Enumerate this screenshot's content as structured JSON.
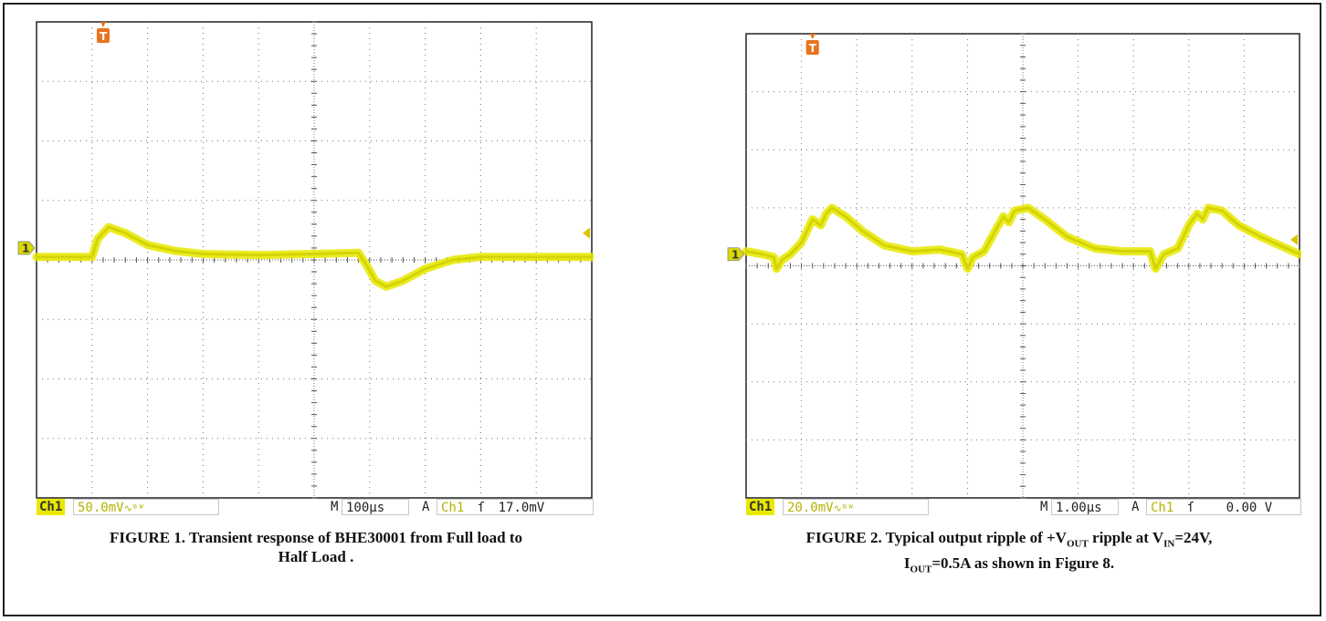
{
  "figures": [
    {
      "caption_line1": "FIGURE 1. Transient response of BHE30001 from Full load  to",
      "caption_line2": "Half Load .",
      "status": {
        "channel": "Ch1",
        "volts_div": "50.0mV",
        "bw_mark": "∿ᴮᵂ",
        "m_label": "M",
        "time_div": "100µs",
        "a_label": "A",
        "trig_channel": "Ch1",
        "trig_slope": "ſ",
        "trig_level": "17.0mV"
      },
      "markers": {
        "trigger": "T",
        "ch1": "1"
      }
    },
    {
      "caption_parts": {
        "p1": "FIGURE 2. Typical output ripple of +V",
        "sub1": "OUT",
        "p2": " ripple at V",
        "sub2": "IN",
        "p3": "=24V,",
        "p4": "I",
        "sub3": "OUT",
        "p5": "=0.5A as shown in Figure 8."
      },
      "status": {
        "channel": "Ch1",
        "volts_div": "20.0mV",
        "bw_mark": "∿ᴮᵂ",
        "m_label": "M",
        "time_div": "1.00µs",
        "a_label": "A",
        "trig_channel": "Ch1",
        "trig_slope": "ſ",
        "trig_level": "0.00 V"
      },
      "markers": {
        "trigger": "T",
        "ch1": "1"
      }
    }
  ],
  "chart_data": [
    {
      "type": "line",
      "x_unit": "divisions",
      "y_unit": "divisions",
      "xlim": [
        0,
        10
      ],
      "ylim": [
        -4,
        4
      ],
      "grid": true,
      "trace_color": "#e8e800",
      "series": [
        {
          "x": [
            0,
            1.0,
            1.1,
            1.3,
            1.6,
            2.0,
            2.5,
            3.0,
            4.0,
            5.0,
            5.8,
            5.95,
            6.1,
            6.3,
            6.6,
            7.0,
            7.5,
            8.0,
            9.0,
            10.0
          ],
          "y": [
            0.05,
            0.05,
            0.35,
            0.55,
            0.45,
            0.25,
            0.15,
            0.1,
            0.08,
            0.1,
            0.12,
            -0.1,
            -0.35,
            -0.45,
            -0.35,
            -0.15,
            0.0,
            0.05,
            0.05,
            0.05
          ]
        }
      ]
    },
    {
      "type": "line",
      "x_unit": "divisions",
      "y_unit": "divisions",
      "xlim": [
        0,
        10
      ],
      "ylim": [
        -4,
        4
      ],
      "grid": true,
      "trace_color": "#e8e800",
      "series": [
        {
          "x": [
            0,
            0.3,
            0.5,
            0.55,
            0.65,
            0.8,
            1.0,
            1.2,
            1.35,
            1.45,
            1.55,
            1.8,
            2.1,
            2.5,
            3.0,
            3.5,
            3.9,
            4.0,
            4.1,
            4.3,
            4.5,
            4.65,
            4.75,
            4.85,
            5.1,
            5.4,
            5.8,
            6.3,
            6.8,
            7.3,
            7.4,
            7.55,
            7.8,
            8.0,
            8.15,
            8.25,
            8.35,
            8.6,
            8.9,
            9.3,
            10.0
          ],
          "y": [
            0.25,
            0.2,
            0.15,
            -0.05,
            0.1,
            0.2,
            0.4,
            0.8,
            0.7,
            0.9,
            1.0,
            0.85,
            0.6,
            0.35,
            0.25,
            0.28,
            0.2,
            -0.05,
            0.15,
            0.25,
            0.6,
            0.85,
            0.75,
            0.95,
            1.0,
            0.8,
            0.5,
            0.3,
            0.25,
            0.25,
            -0.05,
            0.2,
            0.3,
            0.7,
            0.9,
            0.8,
            1.0,
            0.95,
            0.7,
            0.5,
            0.2
          ]
        }
      ]
    }
  ]
}
